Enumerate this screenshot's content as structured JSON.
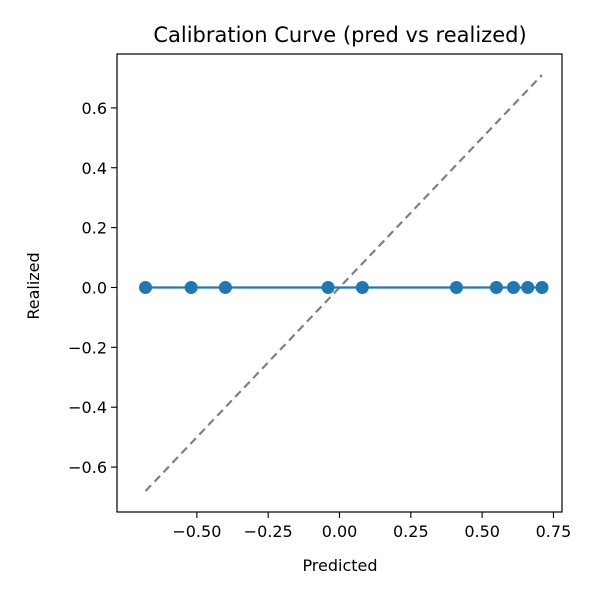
{
  "chart_data": {
    "type": "line",
    "title": "Calibration Curve (pred vs realized)",
    "xlabel": "Predicted",
    "ylabel": "Realized",
    "xlim": [
      -0.78,
      0.78
    ],
    "ylim": [
      -0.75,
      0.78
    ],
    "x_ticks": [
      -0.5,
      -0.25,
      0.0,
      0.25,
      0.5,
      0.75
    ],
    "x_tick_labels": [
      "−0.50",
      "−0.25",
      "0.00",
      "0.25",
      "0.50",
      "0.75"
    ],
    "y_ticks": [
      -0.6,
      -0.4,
      -0.2,
      0.0,
      0.2,
      0.4,
      0.6
    ],
    "y_tick_labels": [
      "−0.6",
      "−0.4",
      "−0.2",
      "0.0",
      "0.2",
      "0.4",
      "0.6"
    ],
    "grid": false,
    "legend": "none",
    "series": [
      {
        "style": "line-with-markers",
        "color": "#1f77b4",
        "x": [
          -0.68,
          -0.52,
          -0.4,
          -0.04,
          0.08,
          0.41,
          0.55,
          0.61,
          0.66,
          0.71
        ],
        "y": [
          0.0,
          0.0,
          0.0,
          0.0,
          0.0,
          0.0,
          0.0,
          0.0,
          0.0,
          0.0
        ]
      },
      {
        "style": "dashed-reference",
        "color": "#808080",
        "x": [
          -0.68,
          0.71
        ],
        "y": [
          -0.68,
          0.71
        ]
      }
    ]
  }
}
